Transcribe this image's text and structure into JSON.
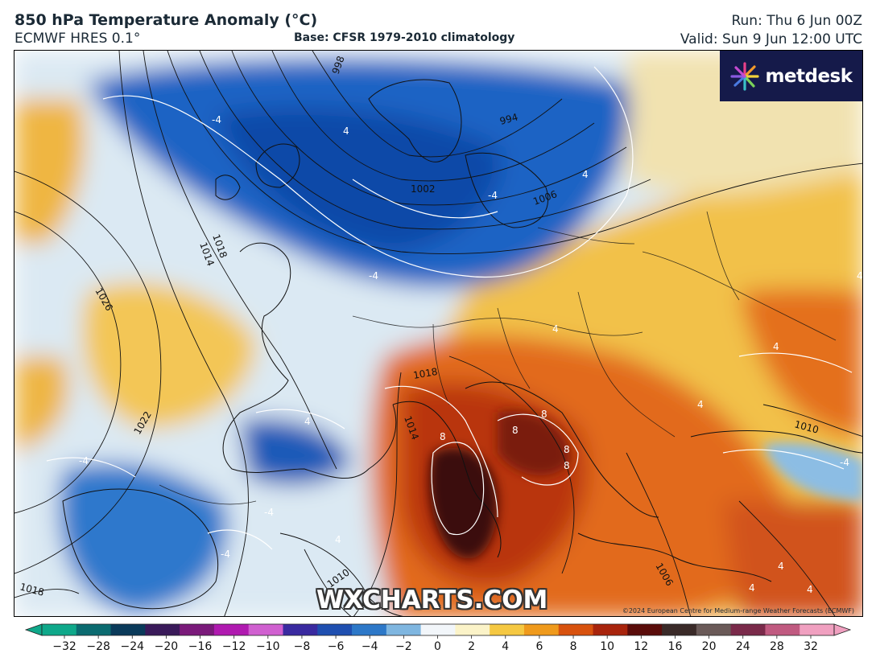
{
  "header": {
    "title": "850 hPa Temperature Anomaly (°C)",
    "model": "ECMWF HRES 0.1°",
    "base": "Base: CFSR 1979-2010 climatology",
    "run": "Run: Thu 6 Jun 00Z",
    "valid": "Valid: Sun 9 Jun 12:00 UTC"
  },
  "logo": {
    "text": "metdesk",
    "icon": "metdesk-starburst-icon",
    "background": "#151a4a"
  },
  "watermark": "WXCHARTS.COM",
  "copyright": "©2024 European Centre for Medium-range Weather Forecasts (ECMWF)",
  "colorbar": {
    "ticks": [
      "−32",
      "−28",
      "−24",
      "−20",
      "−16",
      "−12",
      "−10",
      "−8",
      "−6",
      "−4",
      "−2",
      "0",
      "2",
      "4",
      "6",
      "8",
      "10",
      "12",
      "16",
      "20",
      "24",
      "28",
      "32"
    ],
    "colors": [
      "#0fa88a",
      "#0b6b70",
      "#0a3a5a",
      "#3a1a5a",
      "#7a1a7a",
      "#b01ab0",
      "#d060d0",
      "#3a2aa0",
      "#1f4fb0",
      "#2d78c8",
      "#7fb6e0",
      "#f2f6fa",
      "#fbf3c8",
      "#f5c842",
      "#ef9a1c",
      "#d8520e",
      "#a8240c",
      "#5a0c0a",
      "#3a2a28",
      "#6a5a58",
      "#7a2a4a",
      "#c05a80",
      "#f0a0c0"
    ]
  },
  "map": {
    "isobar_labels": [
      "998",
      "994",
      "1002",
      "1006",
      "1014",
      "1018",
      "1026",
      "1022",
      "1018",
      "1010",
      "1018",
      "1014",
      "1010",
      "1006"
    ],
    "anomaly_labels": [
      "-4",
      "4",
      "-4",
      "4",
      "-4",
      "-4",
      "4",
      "4",
      "8",
      "8",
      "8",
      "8",
      "8",
      "-4",
      "-4",
      "4",
      "4",
      "4",
      "-4",
      "4",
      "4",
      "4",
      "4"
    ],
    "colors": {
      "cold": "#1f5fc0",
      "cool": "#9cc6e6",
      "neutral": "#eef4f8",
      "warm": "#f3c24a",
      "hot": "#e26a1a",
      "very_hot": "#a42410",
      "extreme": "#3a0c0a"
    }
  }
}
